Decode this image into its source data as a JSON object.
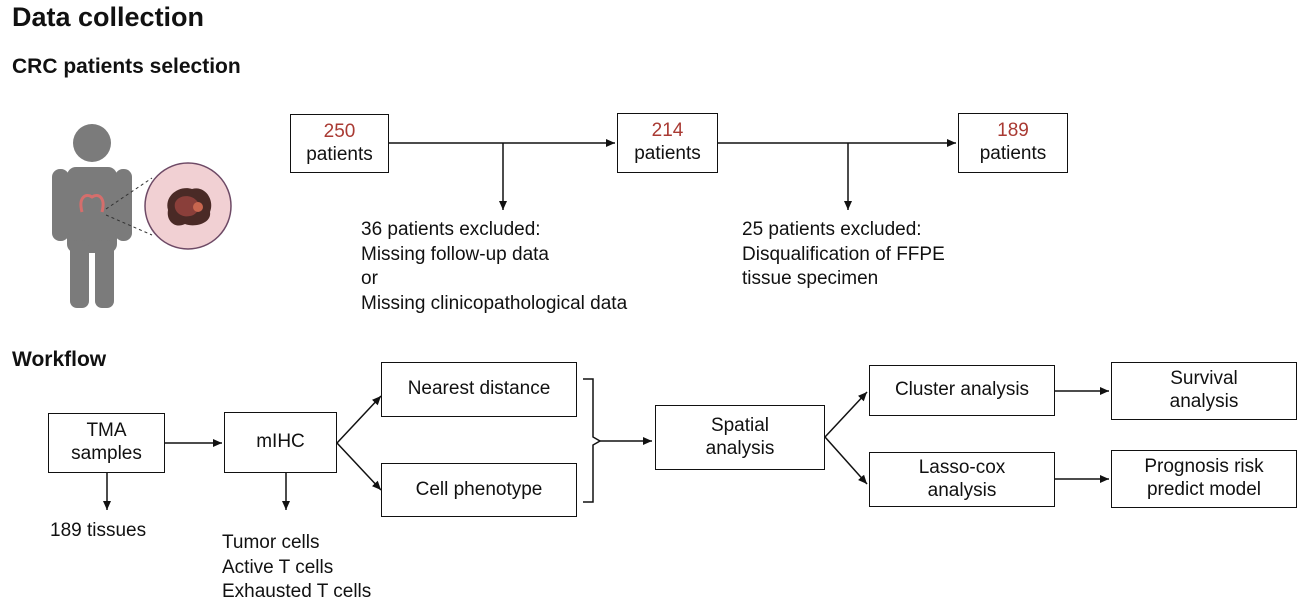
{
  "title": "Data collection",
  "selection": {
    "heading": "CRC patients selection",
    "box1": {
      "count": "250",
      "unit": "patients"
    },
    "box2": {
      "count": "214",
      "unit": "patients"
    },
    "box3": {
      "count": "189",
      "unit": "patients"
    },
    "exclusion1": [
      "36 patients excluded:",
      "Missing follow-up data",
      "or",
      "Missing clinicopathological data"
    ],
    "exclusion2": [
      "25 patients excluded:",
      "Disqualification of FFPE",
      "tissue specimen"
    ]
  },
  "workflow": {
    "heading": "Workflow",
    "tma": [
      "TMA",
      "samples"
    ],
    "tma_note": "189 tissues",
    "mihc": "mIHC",
    "mihc_notes": [
      "Tumor cells",
      "Active T cells",
      "Exhausted T cells"
    ],
    "nearest": "Nearest distance",
    "phenotype": "Cell phenotype",
    "spatial": [
      "Spatial",
      "analysis"
    ],
    "cluster": "Cluster analysis",
    "lasso": [
      "Lasso-cox",
      "analysis"
    ],
    "survival": [
      "Survival",
      "analysis"
    ],
    "prognosis": [
      "Prognosis risk",
      "predict model"
    ]
  },
  "colors": {
    "count_red": "#a93a33",
    "body_gray": "#7b7b7b",
    "lesion_circle": "#f1d0d3"
  }
}
